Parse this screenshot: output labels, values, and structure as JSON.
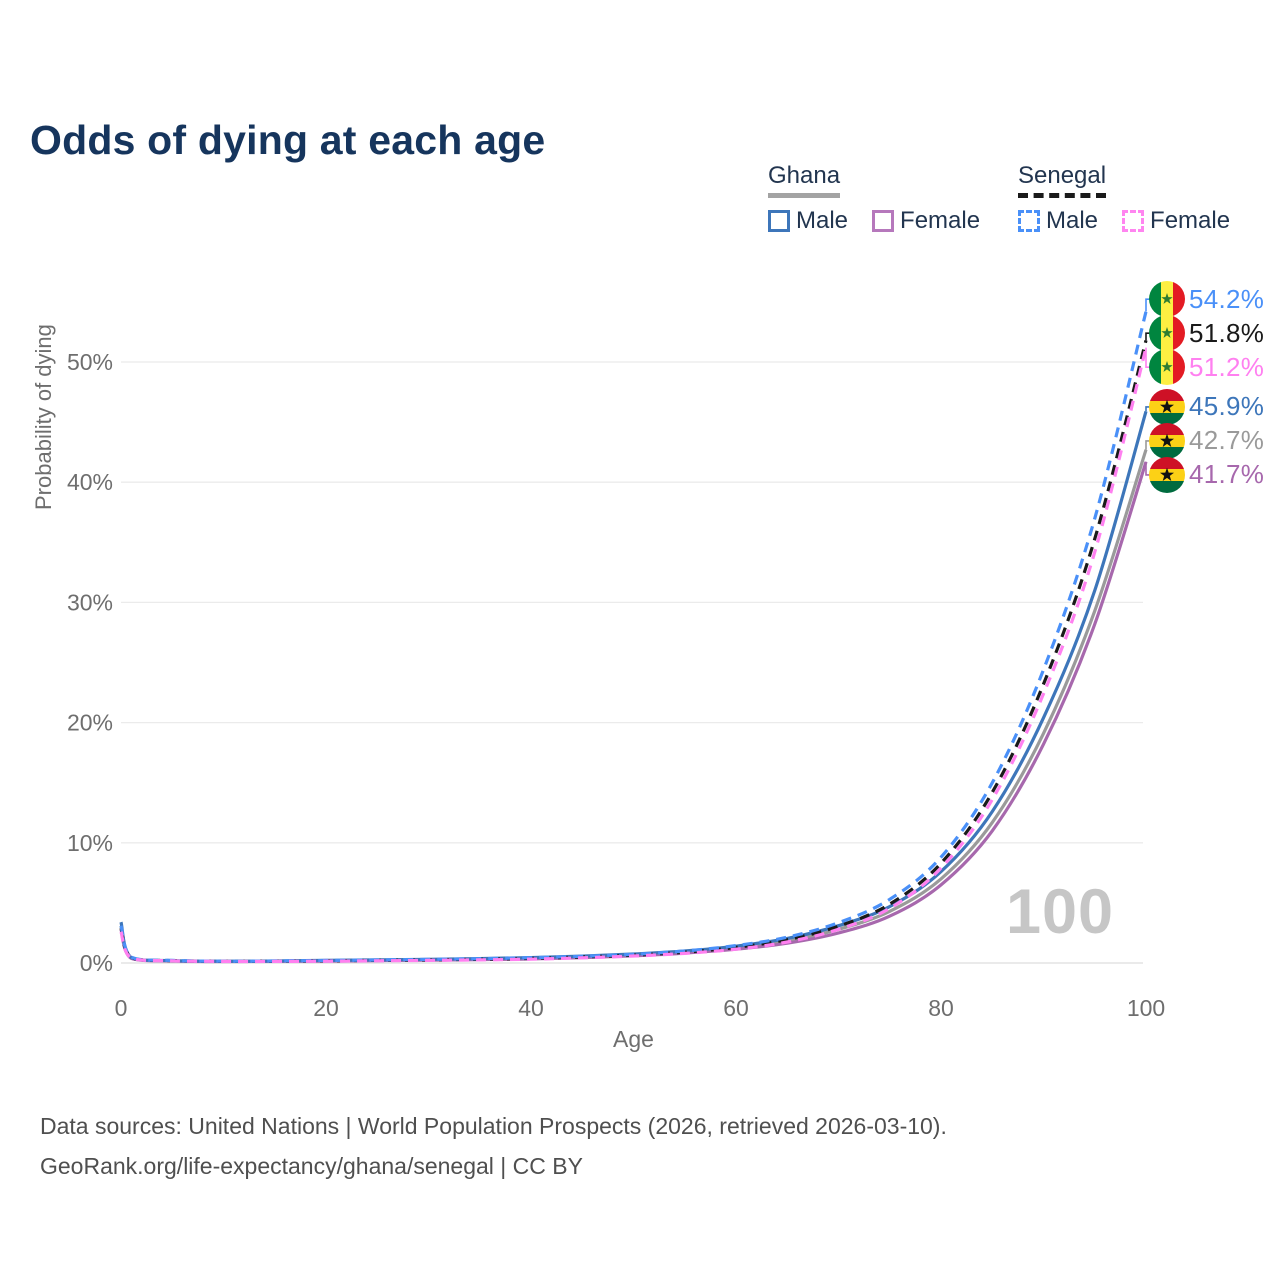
{
  "title": "Odds of dying at each age",
  "legend": {
    "groups": [
      {
        "name": "Ghana",
        "line_style": "solid",
        "underline_color": "#a3a3a3",
        "items": [
          {
            "label": "Male",
            "color": "#3d76ba"
          },
          {
            "label": "Female",
            "color": "#b678bc"
          }
        ]
      },
      {
        "name": "Senegal",
        "line_style": "dashed",
        "underline_color": "#1a1a1a",
        "items": [
          {
            "label": "Male",
            "color": "#4a90f8"
          },
          {
            "label": "Female",
            "color": "#ff85f0"
          }
        ]
      }
    ]
  },
  "watermark_hover_age": "100",
  "footer": {
    "line1": "Data sources: United Nations | World Population Prospects (2026, retrieved 2026-03-10).",
    "line2": "GeoRank.org/life-expectancy/ghana/senegal | CC BY"
  },
  "chart_data": {
    "type": "line",
    "title": "Odds of dying at each age",
    "xlabel": "Age",
    "ylabel": "Probability of dying",
    "xlim": [
      0,
      100
    ],
    "ylim_percent": [
      0,
      56
    ],
    "x_ticks": [
      0,
      20,
      40,
      60,
      80,
      100
    ],
    "y_ticks": [
      {
        "value": 0,
        "label": "0%"
      },
      {
        "value": 10,
        "label": "10%"
      },
      {
        "value": 20,
        "label": "20%"
      },
      {
        "value": 30,
        "label": "30%"
      },
      {
        "value": 40,
        "label": "40%"
      },
      {
        "value": 50,
        "label": "50%"
      }
    ],
    "grid": "horizontal",
    "legend_position": "top-right",
    "ages": [
      0,
      1,
      5,
      10,
      15,
      20,
      25,
      30,
      35,
      40,
      45,
      50,
      55,
      60,
      65,
      70,
      75,
      80,
      85,
      90,
      95,
      100
    ],
    "series": [
      {
        "id": "ghana-all",
        "name": "Ghana (both sexes)",
        "country": "ghana",
        "sex": "all",
        "color": "#9a9a9a",
        "dash": "solid",
        "end_label": "42.7%",
        "values": [
          3.1,
          0.42,
          0.18,
          0.13,
          0.15,
          0.19,
          0.23,
          0.27,
          0.32,
          0.39,
          0.51,
          0.68,
          0.92,
          1.28,
          1.85,
          2.8,
          4.3,
          7.0,
          11.7,
          19.1,
          29.3,
          42.7
        ]
      },
      {
        "id": "ghana-female",
        "name": "Ghana Female",
        "country": "ghana",
        "sex": "female",
        "color": "#a768ad",
        "dash": "solid",
        "end_label": "41.7%",
        "values": [
          2.8,
          0.38,
          0.17,
          0.12,
          0.13,
          0.16,
          0.2,
          0.24,
          0.28,
          0.34,
          0.45,
          0.6,
          0.82,
          1.15,
          1.65,
          2.5,
          3.9,
          6.5,
          11.0,
          18.2,
          28.2,
          41.7
        ]
      },
      {
        "id": "ghana-male",
        "name": "Ghana Male",
        "country": "ghana",
        "sex": "male",
        "color": "#3d76ba",
        "dash": "solid",
        "end_label": "45.9%",
        "values": [
          3.4,
          0.45,
          0.2,
          0.15,
          0.17,
          0.22,
          0.26,
          0.31,
          0.37,
          0.45,
          0.57,
          0.75,
          1.0,
          1.4,
          2.05,
          3.1,
          4.7,
          7.6,
          12.6,
          20.4,
          31.0,
          45.9
        ]
      },
      {
        "id": "senegal-all",
        "name": "Senegal (both sexes)",
        "country": "senegal",
        "sex": "all",
        "color": "#1a1a1a",
        "dash": "dashed",
        "end_label": "51.8%",
        "values": [
          2.9,
          0.46,
          0.2,
          0.14,
          0.15,
          0.18,
          0.22,
          0.26,
          0.31,
          0.38,
          0.5,
          0.65,
          0.9,
          1.3,
          1.95,
          3.05,
          4.9,
          8.3,
          14.2,
          23.2,
          35.3,
          51.8
        ]
      },
      {
        "id": "senegal-male",
        "name": "Senegal Male",
        "country": "senegal",
        "sex": "male",
        "color": "#4a90f8",
        "dash": "dashed",
        "end_label": "54.2%",
        "values": [
          3.1,
          0.5,
          0.22,
          0.15,
          0.17,
          0.21,
          0.25,
          0.3,
          0.36,
          0.44,
          0.56,
          0.72,
          1.0,
          1.45,
          2.15,
          3.35,
          5.3,
          8.8,
          15.0,
          24.4,
          37.0,
          54.2
        ]
      },
      {
        "id": "senegal-female",
        "name": "Senegal Female",
        "country": "senegal",
        "sex": "female",
        "color": "#ff80f0",
        "dash": "dashed",
        "end_label": "51.2%",
        "values": [
          2.6,
          0.42,
          0.18,
          0.13,
          0.13,
          0.15,
          0.18,
          0.22,
          0.26,
          0.32,
          0.43,
          0.58,
          0.8,
          1.15,
          1.75,
          2.8,
          4.55,
          7.9,
          13.6,
          22.4,
          34.2,
          51.2
        ]
      }
    ],
    "flags": {
      "ghana": {
        "orientation": "horizontal",
        "stripes": [
          "#ce1126",
          "#fcd116",
          "#006b3f"
        ],
        "star": "#111111"
      },
      "senegal": {
        "orientation": "vertical",
        "stripes": [
          "#00853f",
          "#fdef42",
          "#e31b23"
        ],
        "star": "#2e7d32"
      }
    }
  }
}
